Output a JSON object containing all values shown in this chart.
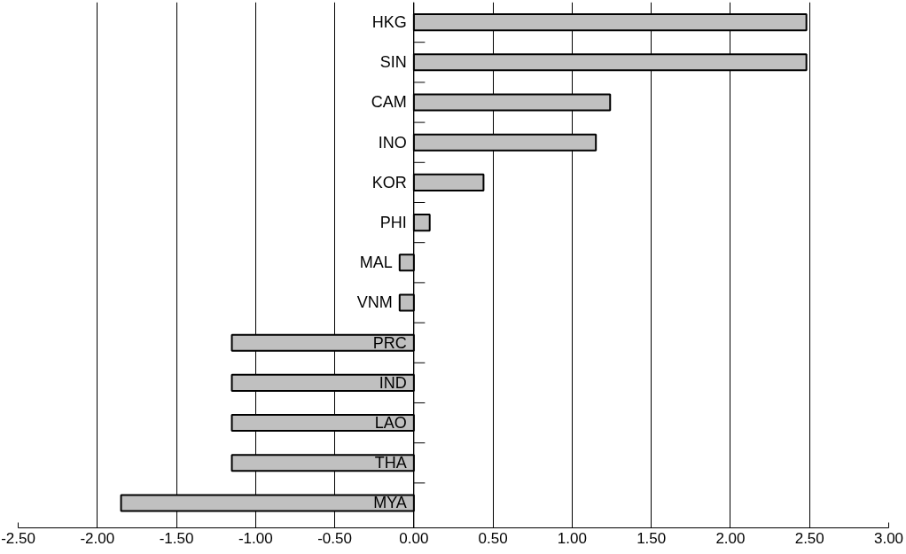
{
  "chart_data": {
    "type": "bar",
    "orientation": "horizontal",
    "categories": [
      "HKG",
      "SIN",
      "CAM",
      "INO",
      "KOR",
      "PHI",
      "MAL",
      "VNM",
      "PRC",
      "IND",
      "LAO",
      "THA",
      "MYA"
    ],
    "values": [
      2.48,
      2.48,
      1.24,
      1.15,
      0.44,
      0.1,
      -0.09,
      -0.09,
      -1.15,
      -1.15,
      -1.15,
      -1.15,
      -1.85
    ],
    "color": "#c0c0c0",
    "xlim": [
      -2.5,
      3.0
    ],
    "xticks": [
      {
        "value": -2.5,
        "label": "-2.50"
      },
      {
        "value": -2.0,
        "label": "-2.00"
      },
      {
        "value": -1.5,
        "label": "-1.50"
      },
      {
        "value": -1.0,
        "label": "-1.00"
      },
      {
        "value": -0.5,
        "label": "-0.50"
      },
      {
        "value": 0,
        "label": "0.00"
      },
      {
        "value": 0.5,
        "label": "0.50"
      },
      {
        "value": 1.0,
        "label": "1.00"
      },
      {
        "value": 1.5,
        "label": "1.50"
      },
      {
        "value": 2.0,
        "label": "2.00"
      },
      {
        "value": 2.5,
        "label": "2.50"
      },
      {
        "value": 3.0,
        "label": "3.00"
      }
    ],
    "grid": "x"
  }
}
